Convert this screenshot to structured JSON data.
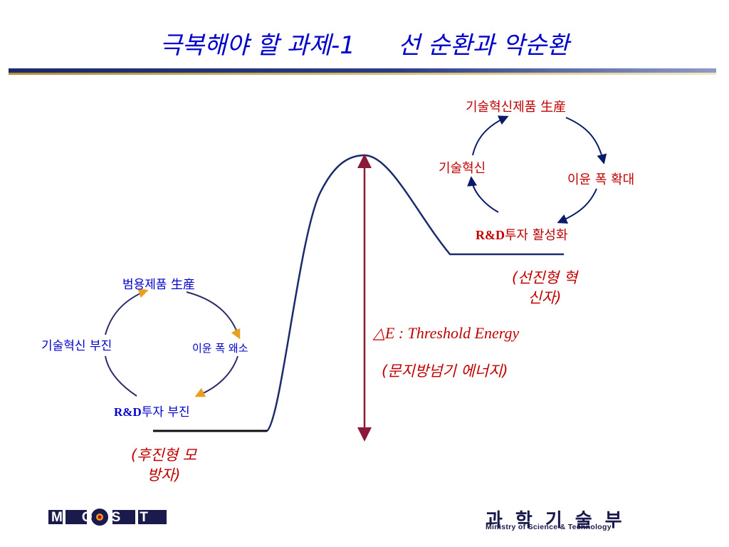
{
  "title": {
    "left": "극복해야 할 과제-1",
    "right": "선 순환과 악순환"
  },
  "good_cycle": {
    "top": "기술혁신제품 生産",
    "left": "기술혁신",
    "right": "이윤 폭 확대",
    "bottom_prefix": "R&D",
    "bottom_suffix": "투자 활성화",
    "tag_line1": "(선진형 혁",
    "tag_line2": "신자)"
  },
  "bad_cycle": {
    "top": "범용제품 生産",
    "left": "기술혁신 부진",
    "right": "이윤 폭 왜소",
    "bottom_prefix": "R&D",
    "bottom_suffix": "투자 부진",
    "tag_line1": "(후진형 모",
    "tag_line2": "방자)"
  },
  "energy": {
    "formula": "△E : Threshold Energy",
    "korean": "(문지방넘기 에너지)"
  },
  "footer": {
    "logo_left": "MOST",
    "logo_right_korean": "과학기술부",
    "logo_right_english": "Ministry of Science & Technology"
  },
  "colors": {
    "title": "#0000cc",
    "curve": "#1a2a6b",
    "arrow": "#8b1a3a",
    "cycle_good": "#0a1a6a",
    "cycle_bad_arc": "#2b2b6b",
    "cycle_bad_arrow": "#e8a020",
    "red_text": "#c00000"
  }
}
